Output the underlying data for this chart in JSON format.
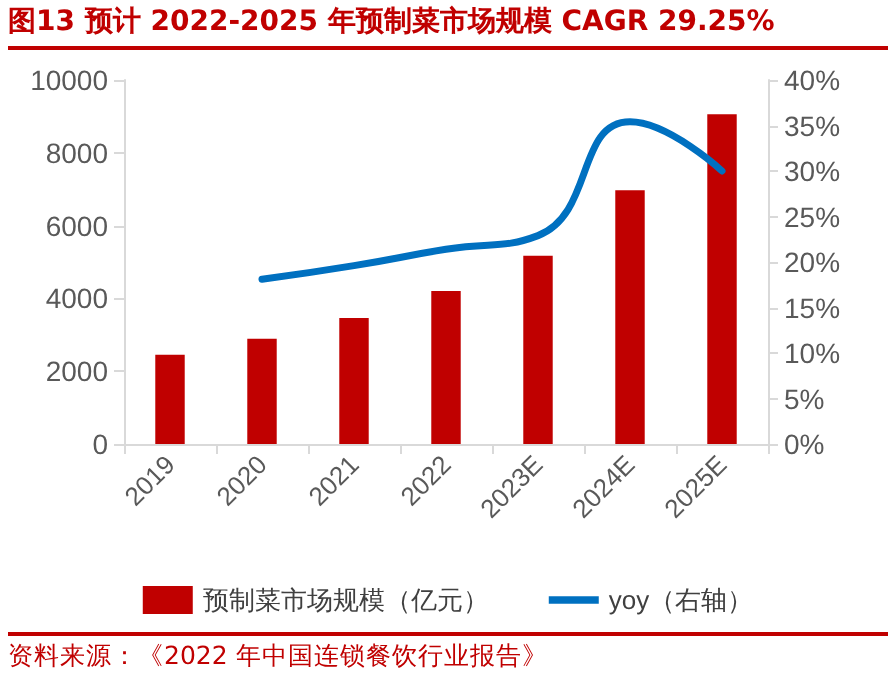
{
  "chart_data": {
    "type": "bar",
    "title": "图13  预计 2022-2025 年预制菜市场规模 CAGR 29.25%",
    "categories": [
      "2019",
      "2020",
      "2021",
      "2022",
      "2023E",
      "2024E",
      "2025E"
    ],
    "series": [
      {
        "name": "预制菜市场规模（亿元）",
        "color": "#c00000",
        "values": [
          2450,
          2890,
          3460,
          4200,
          5170,
          6970,
          9060
        ]
      },
      {
        "name": "yoy（右轴）",
        "type": "line",
        "axis": "y2",
        "color": "#0070c0",
        "values": [
          null,
          18.1,
          19.6,
          21.4,
          22.9,
          35.4,
          30.0
        ]
      }
    ],
    "ylim": [
      0,
      10000
    ],
    "yticks": [
      0,
      2000,
      4000,
      6000,
      8000,
      10000
    ],
    "y2lim": [
      0,
      40
    ],
    "y2ticks": [
      {
        "value": 0,
        "label": "0%"
      },
      {
        "value": 5,
        "label": "5%"
      },
      {
        "value": 10,
        "label": "10%"
      },
      {
        "value": 15,
        "label": "15%"
      },
      {
        "value": 20,
        "label": "20%"
      },
      {
        "value": 25,
        "label": "25%"
      },
      {
        "value": 30,
        "label": "30%"
      },
      {
        "value": 35,
        "label": "35%"
      },
      {
        "value": 40,
        "label": "40%"
      }
    ],
    "grid": false,
    "legend": "bottom",
    "marker": "none",
    "annotations": [
      "资料来源：《2022 年中国连锁餐饮行业报告》"
    ]
  }
}
